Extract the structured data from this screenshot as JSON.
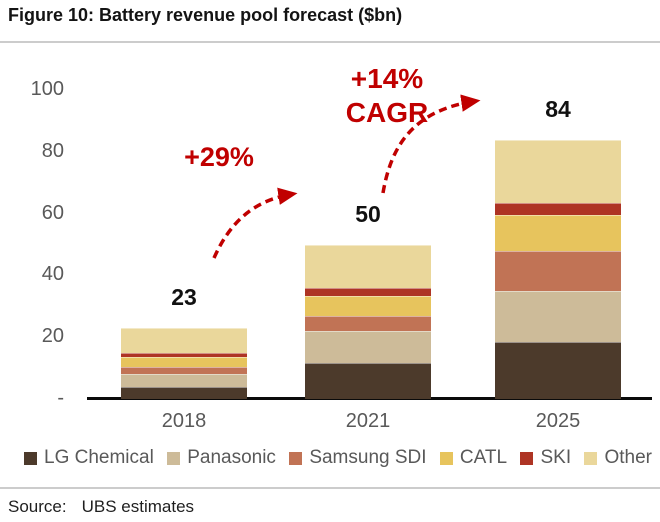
{
  "title": "Figure 10: Battery revenue pool forecast ($bn)",
  "source": {
    "label": "Source:",
    "value": "UBS estimates"
  },
  "chart_data": {
    "type": "bar",
    "stacked": true,
    "title": "Figure 10: Battery revenue pool forecast ($bn)",
    "categories": [
      "2018",
      "2021",
      "2025"
    ],
    "series": [
      {
        "name": "LG Chemical",
        "color": "#4C3A2B",
        "values": [
          4,
          11.5,
          18.5
        ]
      },
      {
        "name": "Panasonic",
        "color": "#CDBB99",
        "values": [
          4,
          10.5,
          16.5
        ]
      },
      {
        "name": "Samsung SDI",
        "color": "#C17355",
        "values": [
          2.5,
          5,
          13
        ]
      },
      {
        "name": "CATL",
        "color": "#E7C45D",
        "values": [
          3,
          6.5,
          11.5
        ]
      },
      {
        "name": "SKI",
        "color": "#AE3424",
        "values": [
          1.5,
          2.5,
          4
        ]
      },
      {
        "name": "Other",
        "color": "#EAD79B",
        "values": [
          8,
          14,
          20.5
        ]
      }
    ],
    "totals": [
      23,
      50,
      84
    ],
    "total_labels": [
      "23",
      "50",
      "84"
    ],
    "ylim": [
      0,
      100
    ],
    "y_ticks": [
      "100",
      "80",
      "60",
      "40",
      "20",
      "-"
    ],
    "y_tick_values": [
      100,
      80,
      60,
      40,
      20,
      0
    ],
    "grid": false,
    "legend_position": "bottom",
    "annotation_color": "#C00000",
    "annotations": [
      {
        "lines": [
          "+29%"
        ],
        "between": [
          "2018",
          "2021"
        ]
      },
      {
        "lines": [
          "+14%",
          "CAGR"
        ],
        "between": [
          "2021",
          "2025"
        ]
      }
    ]
  }
}
